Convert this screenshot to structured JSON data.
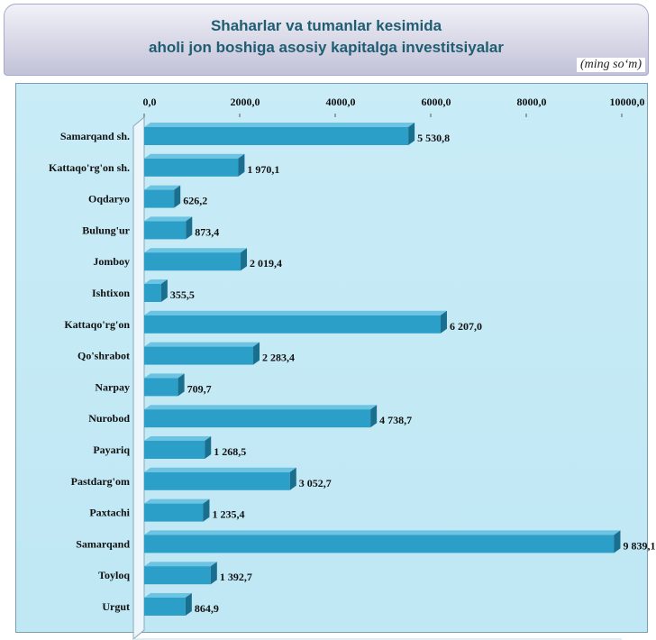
{
  "header": {
    "title_line1": "Shaharlar va tumanlar kesimida",
    "title_line2": "aholi jon boshiga  asosiy kapitalga investitsiyalar",
    "unit": "(ming  so‘m)"
  },
  "chart_data": {
    "type": "bar",
    "orientation": "horizontal",
    "title": "Shaharlar va tumanlar kesimida aholi jon boshiga asosiy kapitalga investitsiyalar",
    "unit": "(ming  so‘m)",
    "xlim": [
      0,
      10000
    ],
    "xticks": [
      0,
      2000,
      4000,
      6000,
      8000,
      10000
    ],
    "xtick_labels": [
      "0,0",
      "2000,0",
      "4000,0",
      "6000,0",
      "8000,0",
      "10000,0"
    ],
    "x_axis_position": "top",
    "grid": false,
    "categories": [
      "Samarqand sh.",
      "Kattaqo'rg'on sh.",
      "Oqdaryo",
      "Bulung'ur",
      "Jomboy",
      "Ishtixon",
      "Kattaqo'rg'on",
      "Qo'shrabot",
      "Narpay",
      "Nurobod",
      "Payariq",
      "Pastdarg'om",
      "Paxtachi",
      "Samarqand",
      "Toyloq",
      "Urgut"
    ],
    "values": [
      5530.8,
      1970.1,
      626.2,
      873.4,
      2019.4,
      355.5,
      6207.0,
      2283.4,
      709.7,
      4738.7,
      1268.5,
      3052.7,
      1235.4,
      9839.1,
      1392.7,
      864.9
    ],
    "value_labels": [
      "5 530,8",
      "1 970,1",
      "626,2",
      "873,4",
      "2 019,4",
      "355,5",
      "6 207,0",
      "2 283,4",
      "709,7",
      "4 738,7",
      "1 268,5",
      "3 052,7",
      "1 235,4",
      "9 839,1",
      "1 392,7",
      "864,9"
    ],
    "colors": {
      "bar": "#2b9fc7",
      "bar_dark": "#1b6f8e",
      "plot_bg": "#c4e9f6"
    }
  }
}
